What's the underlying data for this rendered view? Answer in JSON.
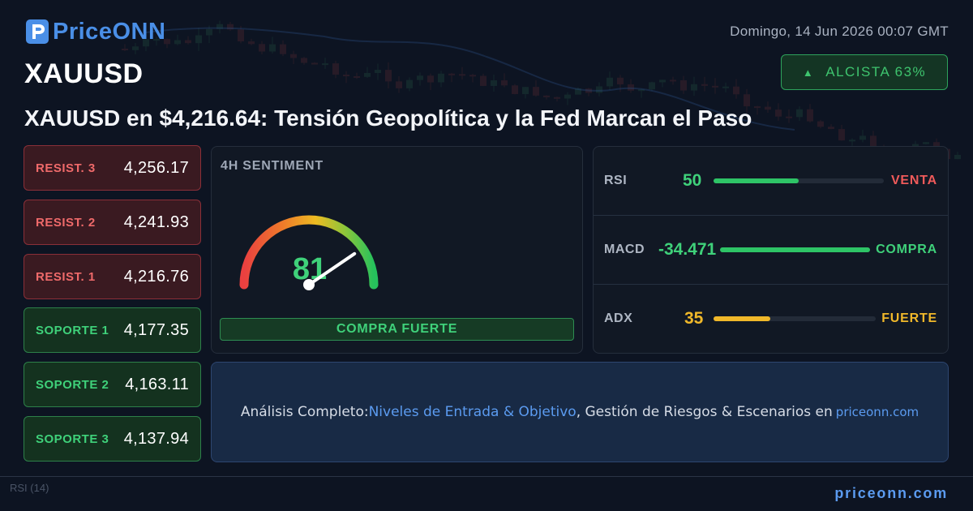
{
  "brand": {
    "name": "PriceONN",
    "domain": "priceonn.com"
  },
  "date": "Domingo, 14 Jun 2026 00:07 GMT",
  "symbol": "XAUUSD",
  "trend_badge": {
    "icon": "up-triangle-icon",
    "label": "ALCISTA 63%",
    "color": "#3ec46e"
  },
  "headline": "XAUUSD en $4,216.64: Tensión Geopolítica y la Fed Marcan el Paso",
  "levels": [
    {
      "label": "RESIST. 3",
      "value": "4,256.17",
      "kind": "resistance"
    },
    {
      "label": "RESIST. 2",
      "value": "4,241.93",
      "kind": "resistance"
    },
    {
      "label": "RESIST. 1",
      "value": "4,216.76",
      "kind": "resistance"
    },
    {
      "label": "SOPORTE 1",
      "value": "4,177.35",
      "kind": "support"
    },
    {
      "label": "SOPORTE 2",
      "value": "4,163.11",
      "kind": "support"
    },
    {
      "label": "SOPORTE 3",
      "value": "4,137.94",
      "kind": "support"
    }
  ],
  "sentiment": {
    "title": "4H SENTIMENT",
    "value": "81",
    "gauge_fraction": 0.81,
    "verdict": "COMPRA FUERTE"
  },
  "indicators": [
    {
      "name": "RSI",
      "value": "50",
      "value_color": "#3fd17a",
      "bar_fraction": 0.5,
      "bar_color": "#2ec466",
      "signal": "VENTA",
      "signal_color": "#ef5a5a"
    },
    {
      "name": "MACD",
      "value": "-34.471",
      "value_color": "#3fd17a",
      "bar_fraction": 1.0,
      "bar_color": "#2ec466",
      "signal": "COMPRA",
      "signal_color": "#3fd17a"
    },
    {
      "name": "ADX",
      "value": "35",
      "value_color": "#f0b82a",
      "bar_fraction": 0.35,
      "bar_color": "#f0b82a",
      "signal": "FUERTE",
      "signal_color": "#f0b82a"
    }
  ],
  "cta": {
    "prefix": "Análisis Completo: ",
    "link1": "Niveles de Entrada & Objetivo",
    "middle": ", Gestión de Riesgos & Escenarios en ",
    "domain": "priceonn.com"
  },
  "footer": {
    "domain": "priceonn.com",
    "rsi_ghost": "RSI (14)"
  },
  "colors": {
    "accent": "#4a8fe7",
    "bull": "#3fd17a",
    "bear": "#ef5a5a",
    "warn": "#f0b82a"
  }
}
